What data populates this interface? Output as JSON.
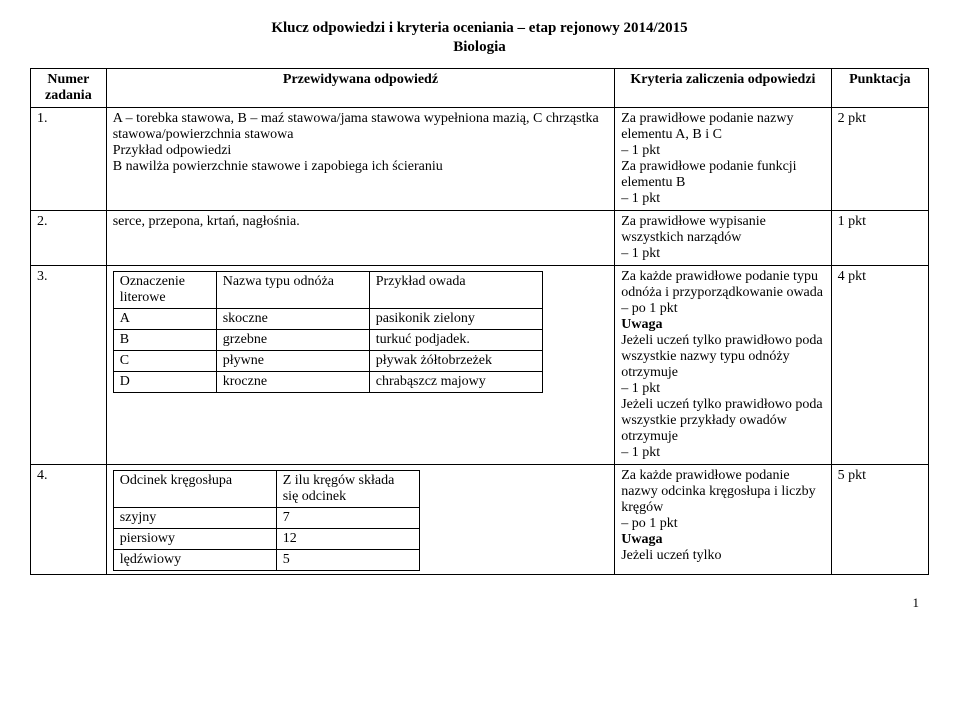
{
  "header": {
    "title": "Klucz odpowiedzi i kryteria oceniania – etap rejonowy 2014/2015",
    "subtitle": "Biologia"
  },
  "columns": {
    "num": "Numer zadania",
    "ans": "Przewidywana odpowiedź",
    "crit": "Kryteria zaliczenia odpowiedzi",
    "pts": "Punktacja"
  },
  "rows": [
    {
      "num": "1.",
      "answer_html": "A – torebka stawowa, B – maź stawowa/jama stawowa wypełniona mazią, C chrząstka stawowa/powierzchnia stawowa<br>Przykład odpowiedzi<br>B nawilża powierzchnie stawowe i zapobiega ich ścieraniu",
      "criteria_html": "Za prawidłowe podanie nazwy elementu A, B i C<br>– 1 pkt<br>Za prawidłowe podanie funkcji elementu B<br>– 1 pkt",
      "points": "2 pkt"
    },
    {
      "num": "2.",
      "answer_html": "serce, przepona, krtań, nagłośnia.",
      "criteria_html": "Za prawidłowe wypisanie wszystkich narządów<br>– 1 pkt",
      "points": "1 pkt"
    },
    {
      "num": "3.",
      "answer_inner_table": {
        "headers": [
          "Oznaczenie literowe",
          "Nazwa typu odnóża",
          "Przykład owada"
        ],
        "rows": [
          [
            "A",
            "skoczne",
            "pasikonik zielony"
          ],
          [
            "B",
            "grzebne",
            "turkuć podjadek."
          ],
          [
            "C",
            "pływne",
            "pływak żółtobrzeżek"
          ],
          [
            "D",
            "kroczne",
            "chrabąszcz majowy"
          ]
        ],
        "col_widths": [
          "90px",
          "140px",
          "160px"
        ]
      },
      "criteria_html": "Za każde prawidłowe podanie typu odnóża i przyporządkowanie owada<br>– po 1 pkt<br><b>Uwaga</b><br>Jeżeli uczeń tylko prawidłowo poda wszystkie nazwy typu odnóży otrzymuje<br>– 1 pkt<br>Jeżeli uczeń tylko prawidłowo poda wszystkie przykłady owadów otrzymuje<br>– 1 pkt",
      "points": "4 pkt"
    },
    {
      "num": "4.",
      "answer_inner_table": {
        "headers": [
          "Odcinek kręgosłupa",
          "Z ilu kręgów składa się odcinek"
        ],
        "rows": [
          [
            "szyjny",
            "7"
          ],
          [
            "piersiowy",
            "12"
          ],
          [
            "lędźwiowy",
            "5"
          ]
        ],
        "col_widths": [
          "150px",
          "130px"
        ]
      },
      "criteria_html": "Za każde prawidłowe podanie nazwy odcinka kręgosłupa i liczby kręgów<br>– po 1 pkt<br><b>Uwaga</b><br>Jeżeli uczeń tylko",
      "points": "5 pkt"
    }
  ],
  "page_number": "1"
}
